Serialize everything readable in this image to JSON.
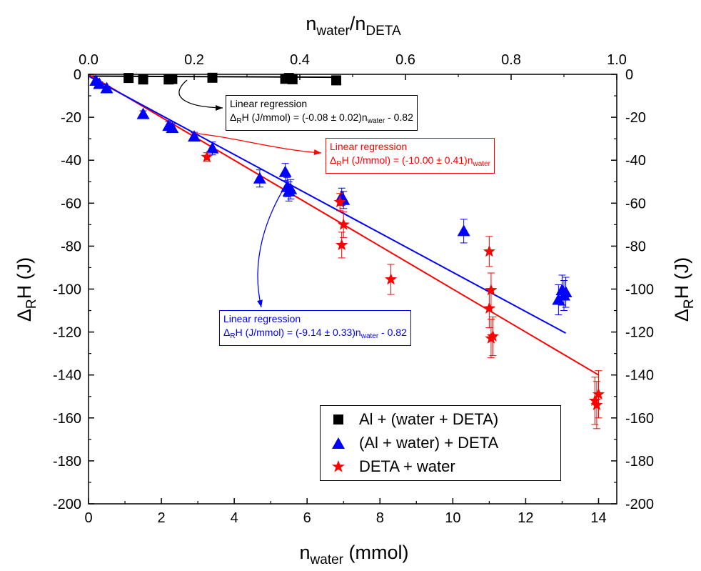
{
  "chart_data": {
    "type": "scatter",
    "xlabel_bottom": "n",
    "xlabel_bottom_sub": "water",
    "xlabel_bottom_unit": " (mmol)",
    "xlabel_top_num": "n",
    "xlabel_top_num_sub": "water",
    "xlabel_top_den": "/n",
    "xlabel_top_den_sub": "DETA",
    "ylabel_left": "Δ",
    "ylabel_left_sub": "R",
    "ylabel_left_rest": "H (J)",
    "ylabel_right": "Δ",
    "ylabel_right_sub": "R",
    "ylabel_right_rest": "H (J)",
    "xlim": [
      0,
      14.5
    ],
    "ylim": [
      -200,
      0
    ],
    "xlim_top": [
      0,
      1
    ],
    "x_ticks": [
      "0",
      "2",
      "4",
      "6",
      "8",
      "10",
      "12",
      "14"
    ],
    "y_ticks": [
      "0",
      "-20",
      "-40",
      "-60",
      "-80",
      "-100",
      "-120",
      "-140",
      "-160",
      "-180",
      "-200"
    ],
    "x_top_ticks": [
      "0.0",
      "0.2",
      "0.4",
      "0.6",
      "0.8",
      "1.0"
    ],
    "grid": false,
    "legend_position": "bottom-right",
    "series": [
      {
        "name": "Al + (water + DETA)",
        "color": "#000000",
        "marker": "square",
        "x": [
          1.1,
          1.5,
          2.2,
          2.3,
          3.4,
          5.4,
          5.5,
          5.6,
          6.8
        ],
        "y": [
          -1.7,
          -2.4,
          -2.4,
          -2.2,
          -1.6,
          -2.1,
          -1.7,
          -2.3,
          -2.8
        ],
        "err": [
          0.6,
          0.6,
          0.6,
          0.6,
          0.6,
          0.6,
          0.6,
          0.6,
          0.6
        ]
      },
      {
        "name": "(Al + water) + DETA",
        "color": "#0000ff",
        "marker": "triangle",
        "x": [
          0.2,
          0.3,
          0.5,
          1.5,
          2.2,
          2.3,
          2.9,
          3.4,
          4.7,
          5.4,
          5.45,
          5.5,
          5.55,
          6.95,
          7.0,
          10.3,
          12.9,
          13.0,
          13.05,
          13.1
        ],
        "y": [
          -3,
          -4.5,
          -6.5,
          -18.5,
          -24,
          -25,
          -29,
          -34.5,
          -48.5,
          -45.5,
          -52.5,
          -54.5,
          -53.5,
          -57,
          -58.5,
          -73,
          -105,
          -100.5,
          -103,
          -101.5
        ],
        "err": [
          1,
          1,
          1,
          1.5,
          2,
          2,
          2,
          3,
          4,
          4,
          4.5,
          4.5,
          4.5,
          4,
          4,
          5.5,
          7,
          7,
          7,
          7
        ]
      },
      {
        "name": "DETA + water",
        "color": "#ff0000",
        "marker": "star",
        "x": [
          3.25,
          6.9,
          6.95,
          7.0,
          8.3,
          11.0,
          11.05,
          11.0,
          11.05,
          11.1,
          13.9,
          13.95,
          14.0
        ],
        "y": [
          -38.5,
          -59.5,
          -79.5,
          -70,
          -95.5,
          -82.5,
          -100.5,
          -109,
          -123,
          -122,
          -152,
          -154,
          -149
        ],
        "err": [
          2,
          4,
          6,
          6,
          7,
          7,
          8,
          9,
          9,
          9,
          11,
          11,
          11
        ]
      }
    ],
    "fits": [
      {
        "color": "#000000",
        "x": [
          0,
          6.8
        ],
        "y": [
          -0.82,
          -1.36
        ]
      },
      {
        "color": "#ff0000",
        "x": [
          0,
          14.0
        ],
        "y": [
          0,
          -140
        ]
      },
      {
        "color": "#0000ff",
        "x": [
          0,
          13.1
        ],
        "y": [
          -0.82,
          -120.5
        ]
      }
    ],
    "arrows": [
      {
        "color": "#000000"
      },
      {
        "color": "#ff0000"
      },
      {
        "color": "#0000ff"
      }
    ],
    "annotations": [
      {
        "color": "#000000",
        "title": "Linear regression",
        "delta": "Δ",
        "sub_r": "R",
        "eq_pre": "H (J/mmol) = (-0.08 ± 0.02)n",
        "sub_w": "water",
        "eq_post": " - 0.82"
      },
      {
        "color": "#ff0000",
        "title": "Linear regression",
        "delta": "Δ",
        "sub_r": "R",
        "eq_pre": "H (J/mmol) = (-10.00 ± 0.41)n",
        "sub_w": "water",
        "eq_post": ""
      },
      {
        "color": "#0000ff",
        "title": "Linear regression",
        "delta": "Δ",
        "sub_r": "R",
        "eq_pre": "H (J/mmol) = (-9.14 ± 0.33)n",
        "sub_w": "water",
        "eq_post": " - 0.82"
      }
    ]
  }
}
